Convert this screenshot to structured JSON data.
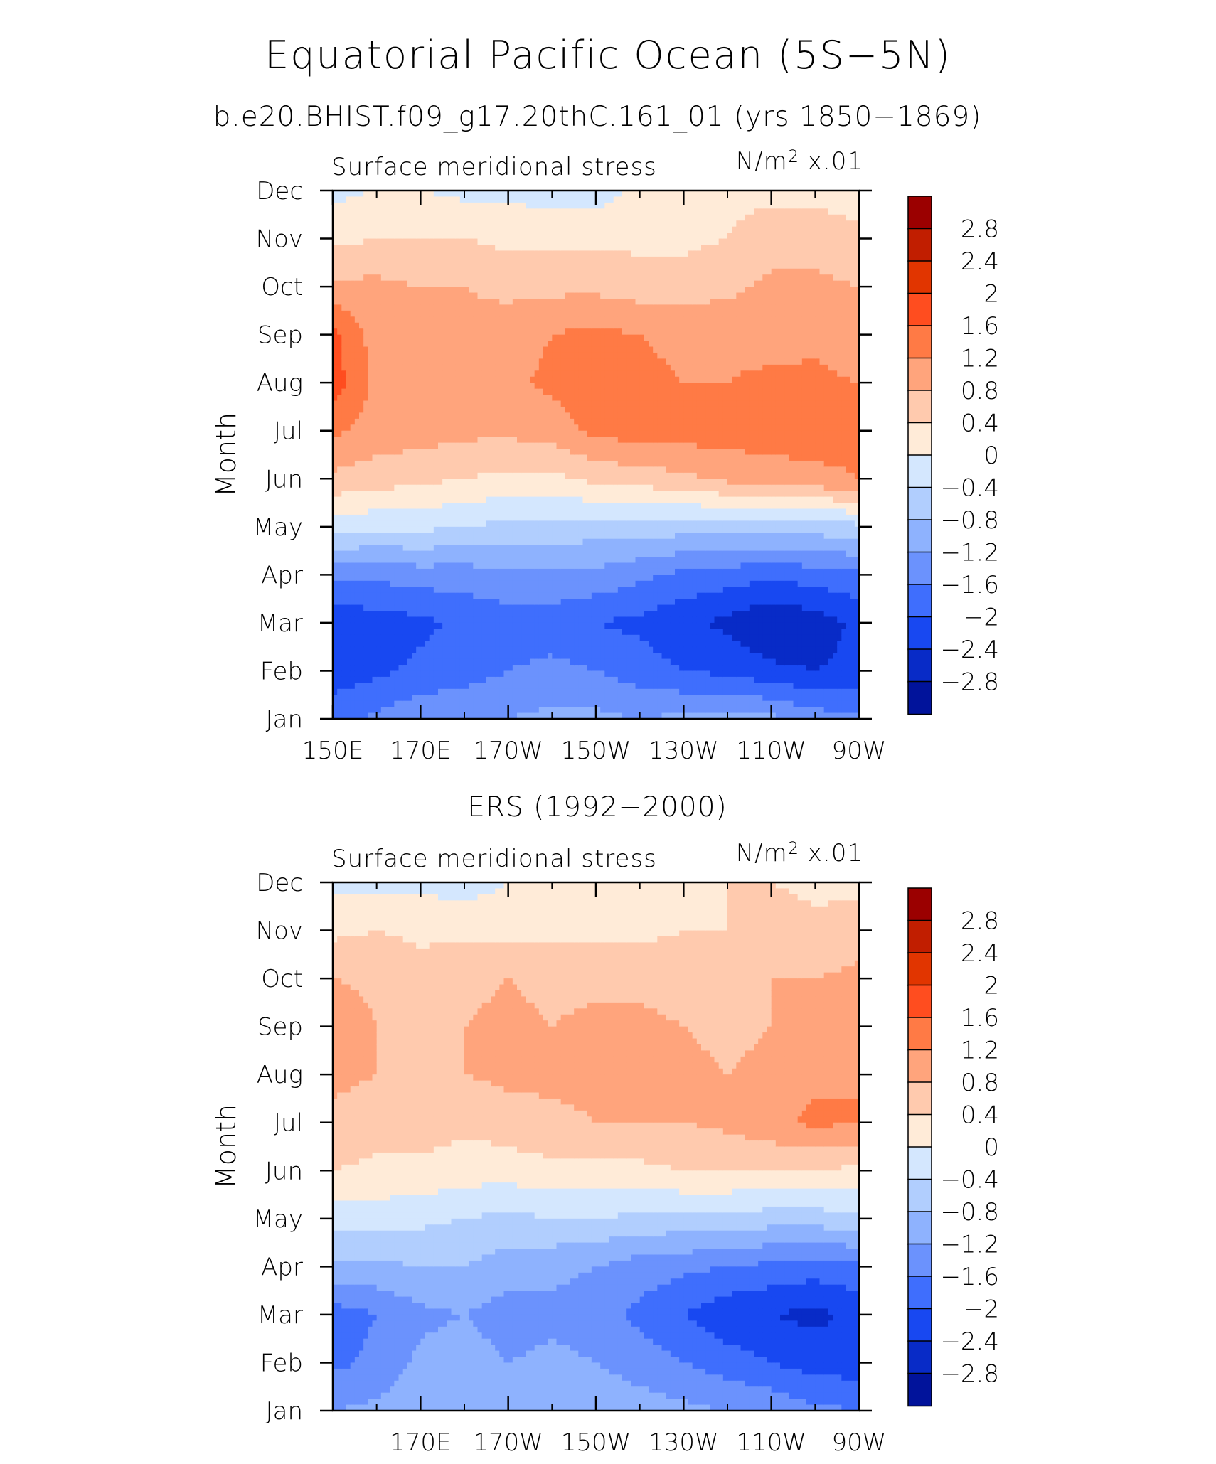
{
  "figure": {
    "title": "Equatorial Pacific Ocean (5S−5N)",
    "subtitle_top": "b.e20.BHIST.f09_g17.20thC.161_01 (yrs 1850−1869)",
    "subtitle_bottom": "ERS (1992−2000)"
  },
  "colorbar": {
    "labels": [
      "2.8",
      "2.4",
      "2",
      "1.6",
      "1.2",
      "0.8",
      "0.4",
      "0",
      "−0.4",
      "−0.8",
      "−1.2",
      "−1.6",
      "−2",
      "−2.4",
      "−2.8"
    ],
    "colors": [
      "#9b0000",
      "#c11e00",
      "#e13500",
      "#ff4d1f",
      "#ff7a45",
      "#ffa47c",
      "#ffcaae",
      "#ffebd8",
      "#d4e7fe",
      "#b1cefe",
      "#8eb2fe",
      "#6b92fd",
      "#3f6efd",
      "#1848f1",
      "#082bc7",
      "#01139b"
    ]
  },
  "chart_data": [
    {
      "type": "heatmap",
      "panel": "model",
      "title": "Surface meridional stress",
      "units": "N/m² x.01",
      "ylabel": "Month",
      "y_categories": [
        "Jan",
        "Feb",
        "Mar",
        "Apr",
        "May",
        "Jun",
        "Jul",
        "Aug",
        "Sep",
        "Oct",
        "Nov",
        "Dec"
      ],
      "x_tick_labels": [
        "150E",
        "170E",
        "170W",
        "150W",
        "130W",
        "110W",
        "90W"
      ],
      "x_tick_lons": [
        150,
        170,
        190,
        210,
        230,
        250,
        270
      ],
      "x_range": [
        150,
        270
      ],
      "levels": [
        -2.8,
        -2.4,
        -2.0,
        -1.6,
        -1.2,
        -0.8,
        -0.4,
        0,
        0.4,
        0.8,
        1.2,
        1.6,
        2.0,
        2.4,
        2.8
      ],
      "x": [
        150,
        160,
        170,
        180,
        190,
        200,
        210,
        220,
        230,
        240,
        250,
        260,
        270
      ],
      "values": [
        [
          -1.8,
          -1.5,
          -1.3,
          -1.2,
          -1.2,
          -1.1,
          -1.1,
          -1.2,
          -1.1,
          -1.0,
          -1.1,
          -1.4,
          -1.5
        ],
        [
          -2.2,
          -2.1,
          -1.9,
          -1.8,
          -1.6,
          -1.5,
          -1.6,
          -1.8,
          -2.0,
          -2.1,
          -2.3,
          -2.4,
          -2.3
        ],
        [
          -2.3,
          -2.2,
          -2.1,
          -1.9,
          -1.8,
          -1.8,
          -2.0,
          -2.1,
          -2.3,
          -2.5,
          -2.8,
          -2.6,
          -2.3
        ],
        [
          -1.5,
          -1.5,
          -1.4,
          -1.4,
          -1.3,
          -1.3,
          -1.3,
          -1.5,
          -1.7,
          -1.8,
          -1.9,
          -1.8,
          -1.7
        ],
        [
          -0.2,
          -0.3,
          -0.3,
          -0.4,
          -0.5,
          -0.5,
          -0.6,
          -0.6,
          -0.6,
          -0.6,
          -0.6,
          -0.6,
          -0.5
        ],
        [
          0.7,
          0.6,
          0.5,
          0.4,
          0.3,
          0.3,
          0.5,
          0.6,
          0.7,
          0.9,
          1.0,
          1.1,
          1.2
        ],
        [
          1.3,
          1.0,
          1.0,
          0.9,
          0.9,
          1.0,
          1.3,
          1.4,
          1.4,
          1.4,
          1.4,
          1.4,
          1.3
        ],
        [
          1.8,
          1.1,
          1.0,
          1.0,
          1.1,
          1.3,
          1.4,
          1.3,
          1.2,
          1.2,
          1.3,
          1.3,
          1.2
        ],
        [
          1.7,
          1.0,
          0.9,
          0.9,
          1.0,
          1.2,
          1.3,
          1.2,
          1.1,
          1.1,
          1.0,
          1.1,
          0.9
        ],
        [
          0.9,
          0.9,
          0.8,
          0.8,
          0.7,
          0.7,
          0.7,
          0.6,
          0.6,
          0.7,
          0.9,
          0.9,
          0.8
        ],
        [
          0.3,
          0.4,
          0.4,
          0.4,
          0.3,
          0.3,
          0.3,
          0.3,
          0.3,
          0.4,
          0.6,
          0.6,
          0.5
        ],
        [
          -0.1,
          0.0,
          0.0,
          -0.1,
          -0.1,
          -0.2,
          -0.2,
          0.1,
          0.2,
          0.3,
          0.3,
          0.3,
          0.2
        ]
      ]
    },
    {
      "type": "heatmap",
      "panel": "observed",
      "title": "Surface meridional stress",
      "units": "N/m² x.01",
      "ylabel": "Month",
      "y_categories": [
        "Jan",
        "Feb",
        "Mar",
        "Apr",
        "May",
        "Jun",
        "Jul",
        "Aug",
        "Sep",
        "Oct",
        "Nov",
        "Dec"
      ],
      "x_tick_labels": [
        "170E",
        "170W",
        "150W",
        "130W",
        "110W",
        "90W"
      ],
      "x_tick_lons": [
        170,
        190,
        210,
        230,
        250,
        270
      ],
      "x_range": [
        150,
        270
      ],
      "levels": [
        -2.8,
        -2.4,
        -2.0,
        -1.6,
        -1.2,
        -0.8,
        -0.4,
        0,
        0.4,
        0.8,
        1.2,
        1.6,
        2.0,
        2.4,
        2.8
      ],
      "x": [
        150,
        160,
        170,
        180,
        190,
        200,
        210,
        220,
        230,
        240,
        250,
        260,
        270
      ],
      "values": [
        [
          -1.2,
          -1.1,
          -0.9,
          -0.8,
          -0.9,
          -0.8,
          -0.9,
          -1.0,
          -1.1,
          -1.2,
          -1.3,
          -1.5,
          -1.6
        ],
        [
          -1.7,
          -1.5,
          -1.1,
          -1.0,
          -1.2,
          -1.1,
          -1.2,
          -1.4,
          -1.6,
          -1.8,
          -2.0,
          -2.2,
          -2.2
        ],
        [
          -1.8,
          -1.6,
          -1.3,
          -1.2,
          -1.4,
          -1.3,
          -1.4,
          -1.7,
          -2.0,
          -2.3,
          -2.4,
          -2.5,
          -2.3
        ],
        [
          -0.9,
          -0.9,
          -0.8,
          -0.8,
          -1.0,
          -1.1,
          -1.2,
          -1.4,
          -1.5,
          -1.6,
          -1.7,
          -1.8,
          -1.7
        ],
        [
          -0.2,
          -0.2,
          -0.3,
          -0.4,
          -0.5,
          -0.4,
          -0.4,
          -0.5,
          -0.5,
          -0.5,
          -0.6,
          -0.6,
          -0.5
        ],
        [
          0.4,
          0.3,
          0.3,
          0.2,
          0.2,
          0.3,
          0.3,
          0.3,
          0.4,
          0.4,
          0.4,
          0.4,
          0.3
        ],
        [
          0.7,
          0.6,
          0.6,
          0.5,
          0.6,
          0.7,
          0.8,
          0.8,
          0.8,
          0.9,
          1.1,
          1.3,
          1.2
        ],
        [
          0.9,
          0.8,
          0.7,
          0.8,
          0.9,
          0.9,
          0.9,
          0.9,
          0.9,
          0.8,
          0.9,
          1.1,
          1.2
        ],
        [
          1.1,
          0.8,
          0.7,
          0.8,
          0.9,
          0.8,
          0.9,
          0.9,
          0.8,
          0.7,
          0.8,
          0.9,
          1.0
        ],
        [
          0.8,
          0.7,
          0.6,
          0.7,
          0.8,
          0.7,
          0.7,
          0.7,
          0.6,
          0.6,
          0.8,
          0.8,
          0.9
        ],
        [
          0.3,
          0.4,
          0.3,
          0.3,
          0.3,
          0.3,
          0.3,
          0.3,
          0.4,
          0.4,
          0.6,
          0.5,
          0.6
        ],
        [
          -0.1,
          -0.1,
          -0.1,
          -0.2,
          0.0,
          0.1,
          0.2,
          0.3,
          0.3,
          0.4,
          0.4,
          0.3,
          0.3
        ]
      ]
    }
  ]
}
